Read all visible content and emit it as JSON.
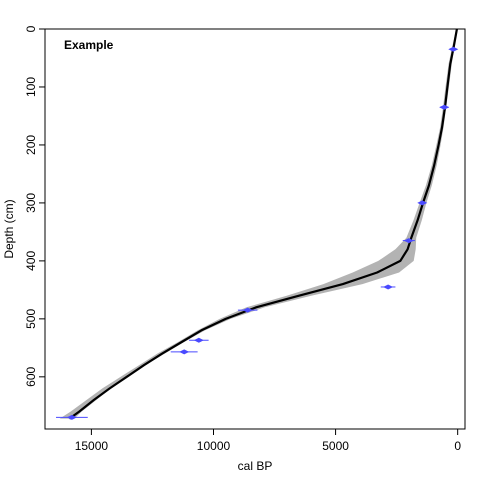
{
  "chart_data": {
    "type": "line",
    "annotation": "Example",
    "xlabel": "cal BP",
    "ylabel": "Depth (cm)",
    "xlim": [
      16900,
      -300
    ],
    "ylim": [
      0,
      690
    ],
    "x_reversed": true,
    "y_reversed": true,
    "x_ticks": [
      15000,
      10000,
      5000,
      0
    ],
    "y_ticks": [
      0,
      100,
      200,
      300,
      400,
      500,
      600
    ],
    "grid": false,
    "colors": {
      "model_line": "#000000",
      "envelope": "#b3b3b3",
      "dates": "#4a4aff"
    },
    "model": {
      "depth": [
        0,
        30,
        60,
        100,
        135,
        170,
        200,
        235,
        270,
        300,
        330,
        360,
        380,
        400,
        420,
        440,
        460,
        480,
        500,
        520,
        540,
        560,
        580,
        600,
        620,
        640,
        660,
        672
      ],
      "median": [
        30,
        160,
        300,
        420,
        520,
        640,
        780,
        960,
        1180,
        1420,
        1640,
        1900,
        2050,
        2350,
        3300,
        4700,
        6500,
        8250,
        9500,
        10500,
        11300,
        12100,
        12850,
        13550,
        14250,
        14900,
        15500,
        15900
      ],
      "lower": [
        0,
        120,
        240,
        360,
        470,
        580,
        700,
        860,
        1060,
        1280,
        1470,
        1700,
        1720,
        1800,
        2400,
        3900,
        6000,
        7900,
        9300,
        10350,
        11200,
        12000,
        12800,
        13500,
        14200,
        14800,
        15400,
        15700
      ],
      "upper": [
        60,
        220,
        370,
        500,
        600,
        720,
        870,
        1060,
        1300,
        1560,
        1810,
        2100,
        2550,
        3250,
        4300,
        5500,
        7000,
        8650,
        9750,
        10650,
        11450,
        12300,
        13050,
        13800,
        14550,
        15200,
        15850,
        16300
      ]
    },
    "dates": [
      {
        "age": 180,
        "depth": 35,
        "err": 120
      },
      {
        "age": 550,
        "depth": 135,
        "err": 180
      },
      {
        "age": 1450,
        "depth": 300,
        "err": 150
      },
      {
        "age": 2000,
        "depth": 365,
        "err": 250
      },
      {
        "age": 2850,
        "depth": 445,
        "err": 300
      },
      {
        "age": 8600,
        "depth": 485,
        "err": 400
      },
      {
        "age": 10600,
        "depth": 537,
        "err": 400
      },
      {
        "age": 11200,
        "depth": 557,
        "err": 550
      },
      {
        "age": 15800,
        "depth": 670,
        "err": 650
      }
    ]
  }
}
